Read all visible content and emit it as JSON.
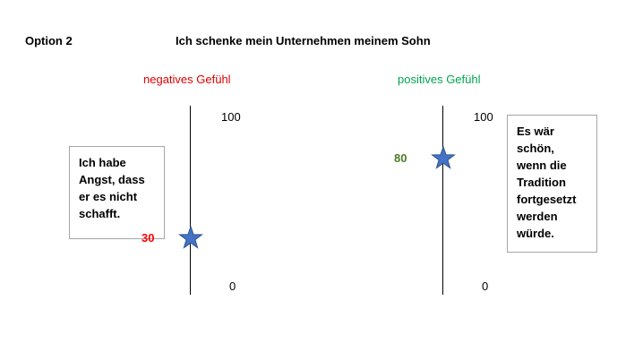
{
  "header": {
    "option": "Option 2",
    "title": "Ich schenke mein Unternehmen meinem Sohn"
  },
  "colors": {
    "negative": "#e00000",
    "positive": "#00a64f",
    "negative_value": "#ff0000",
    "positive_value": "#4f7a28",
    "star_fill": "#4472c4",
    "star_stroke": "#2f528f"
  },
  "scales": {
    "negative": {
      "heading": "negatives Gefühl",
      "max_label": "100",
      "min_label": "0",
      "value": 30,
      "value_label": "30",
      "note": "Ich habe\nAngst, dass\ner es nicht\nschafft."
    },
    "positive": {
      "heading": "positives Gefühl",
      "max_label": "100",
      "min_label": "0",
      "value": 80,
      "value_label": "80",
      "note": "Es wär\nschön,\nwenn die\nTradition\nfortgesetzt\nwerden\nwürde."
    }
  }
}
